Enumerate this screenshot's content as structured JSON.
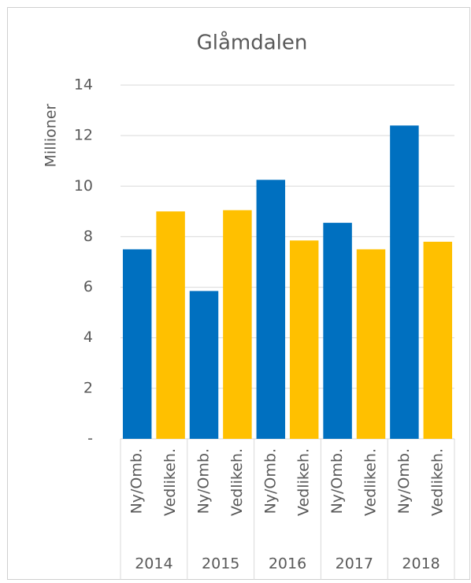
{
  "chart_data": {
    "type": "bar",
    "title": "Glåmdalen",
    "y_label": "Millioner",
    "categories": [
      "2014",
      "2015",
      "2016",
      "2017",
      "2018"
    ],
    "series": [
      {
        "name": "Ny/Omb.",
        "color": "#0070c0",
        "values": [
          7.5,
          5.85,
          10.25,
          8.55,
          12.4
        ]
      },
      {
        "name": "Vedlikeh.",
        "color": "#ffc000",
        "values": [
          9.0,
          9.05,
          7.85,
          7.5,
          7.8
        ]
      }
    ],
    "ylim": [
      0,
      14
    ],
    "yticks": [
      {
        "value": 0,
        "label": "-"
      },
      2,
      4,
      6,
      8,
      10,
      12,
      14
    ],
    "grid": true
  }
}
